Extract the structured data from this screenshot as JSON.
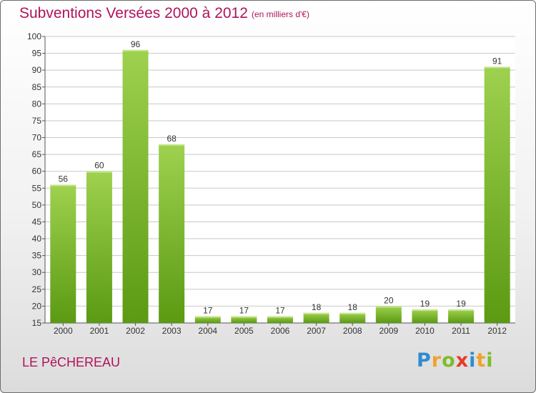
{
  "title": "Subventions Versées 2000 à 2012",
  "subtitle": "(en milliers d'€)",
  "commune": "LE PêCHEREAU",
  "brand": {
    "text": "Proxiti",
    "letter_colors": [
      "#2f8bd1",
      "#f0a22a",
      "#7fbc2a",
      "#e53a2a",
      "#2f8bd1",
      "#f0a22a",
      "#7fbc2a"
    ]
  },
  "colors": {
    "title": "#b0135c",
    "bar_top": "#9ed14f",
    "bar_bottom": "#5b9a12",
    "grid": "#c8c8c8"
  },
  "chart_data": {
    "type": "bar",
    "title": "Subventions Versées 2000 à 2012",
    "subtitle": "(en milliers d'€)",
    "categories": [
      "2000",
      "2001",
      "2002",
      "2003",
      "2004",
      "2005",
      "2006",
      "2007",
      "2008",
      "2009",
      "2010",
      "2011",
      "2012"
    ],
    "values": [
      56,
      60,
      96,
      68,
      17,
      17,
      17,
      18,
      18,
      20,
      19,
      19,
      91
    ],
    "ylim": [
      15,
      100
    ],
    "yticks": [
      15,
      20,
      25,
      30,
      35,
      40,
      45,
      50,
      55,
      60,
      65,
      70,
      75,
      80,
      85,
      90,
      95,
      100
    ],
    "grid": true,
    "xlabel": "",
    "ylabel": ""
  }
}
